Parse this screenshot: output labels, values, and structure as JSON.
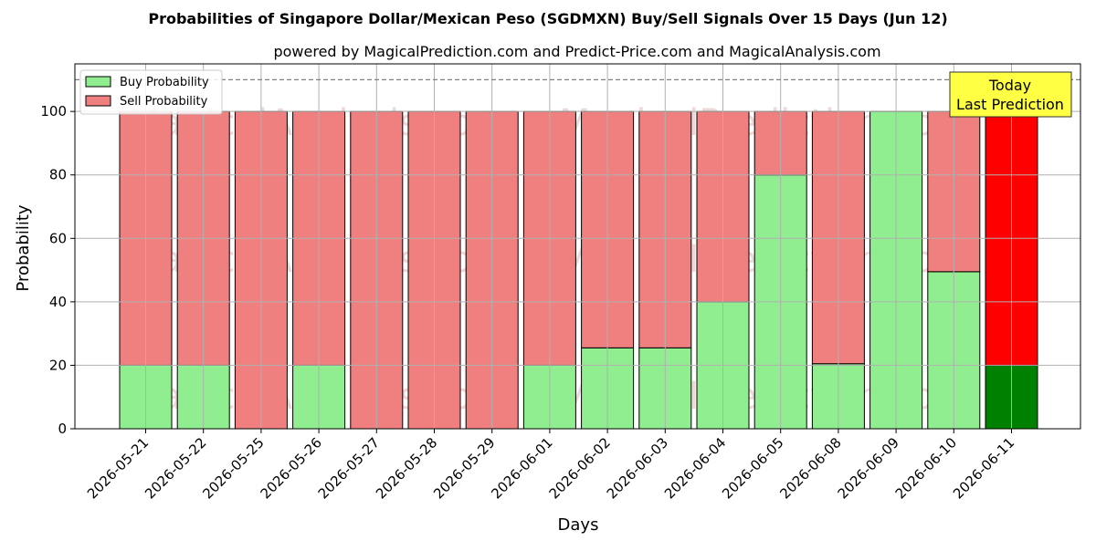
{
  "chart_data": {
    "type": "bar",
    "title": "Probabilities of Singapore Dollar/Mexican Peso (SGDMXN) Buy/Sell Signals Over 15 Days (Jun 12)",
    "subtitle": "powered by MagicalPrediction.com and Predict-Price.com and MagicalAnalysis.com",
    "xlabel": "Days",
    "ylabel": "Probability",
    "ylim": [
      0,
      115
    ],
    "yticks": [
      0,
      20,
      40,
      60,
      80,
      100
    ],
    "reference_line": 110,
    "grid": true,
    "legend_placement": "top-left",
    "categories": [
      "2026-05-21",
      "2026-05-22",
      "2026-05-25",
      "2026-05-26",
      "2026-05-27",
      "2026-05-28",
      "2026-05-29",
      "2026-06-01",
      "2026-06-02",
      "2026-06-03",
      "2026-06-04",
      "2026-06-05",
      "2026-06-08",
      "2026-06-09",
      "2026-06-10",
      "2026-06-11"
    ],
    "series": [
      {
        "name": "Buy Probability",
        "color": "#90ee90",
        "highlight_color": "#008000",
        "values": [
          20,
          20,
          0,
          20,
          0,
          0,
          0,
          20,
          25.5,
          25.5,
          40,
          80,
          20.5,
          100,
          49.5,
          20
        ]
      },
      {
        "name": "Sell Probability",
        "color": "#f08080",
        "highlight_color": "#ff0000",
        "values": [
          80,
          80,
          100,
          80,
          100,
          100,
          100,
          80,
          74.5,
          74.5,
          60,
          20,
          79.5,
          0,
          50.5,
          80
        ]
      }
    ],
    "annotation": {
      "lines": [
        "Today",
        "Last Prediction"
      ],
      "background": "#ffff44"
    },
    "watermarks": [
      "MagicalAnalysis.com",
      "MagicalPrediction.com"
    ]
  }
}
